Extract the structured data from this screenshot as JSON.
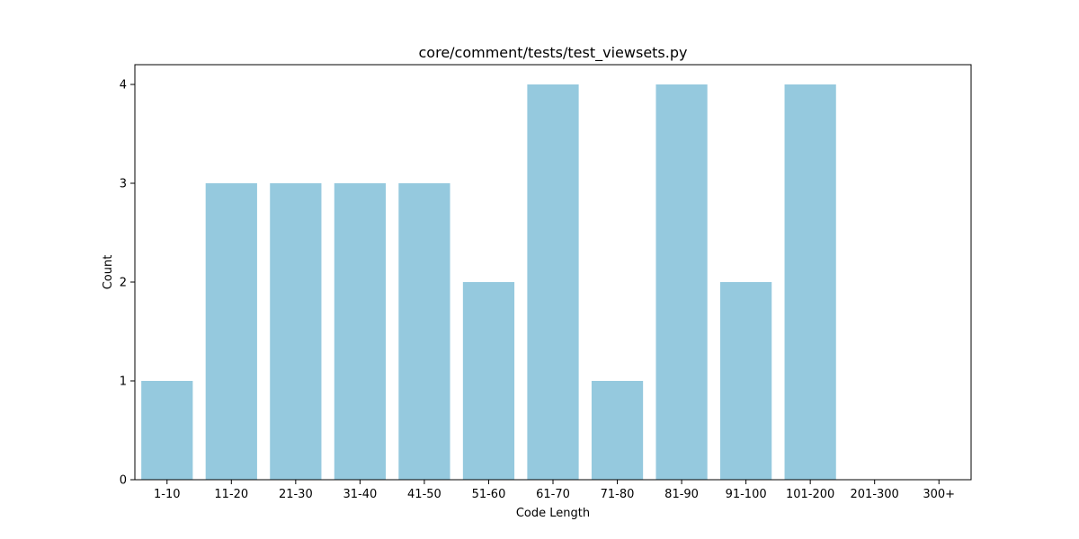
{
  "chart_data": {
    "type": "bar",
    "title": "core/comment/tests/test_viewsets.py",
    "xlabel": "Code Length",
    "ylabel": "Count",
    "categories": [
      "1-10",
      "11-20",
      "21-30",
      "31-40",
      "41-50",
      "51-60",
      "61-70",
      "71-80",
      "81-90",
      "91-100",
      "101-200",
      "201-300",
      "300+"
    ],
    "values": [
      1,
      3,
      3,
      3,
      3,
      2,
      4,
      1,
      4,
      2,
      4,
      0,
      0
    ],
    "ylim": [
      0,
      4.2
    ],
    "yticks": [
      0,
      1,
      2,
      3,
      4
    ],
    "bar_color": "#95c9de",
    "grid": false
  }
}
